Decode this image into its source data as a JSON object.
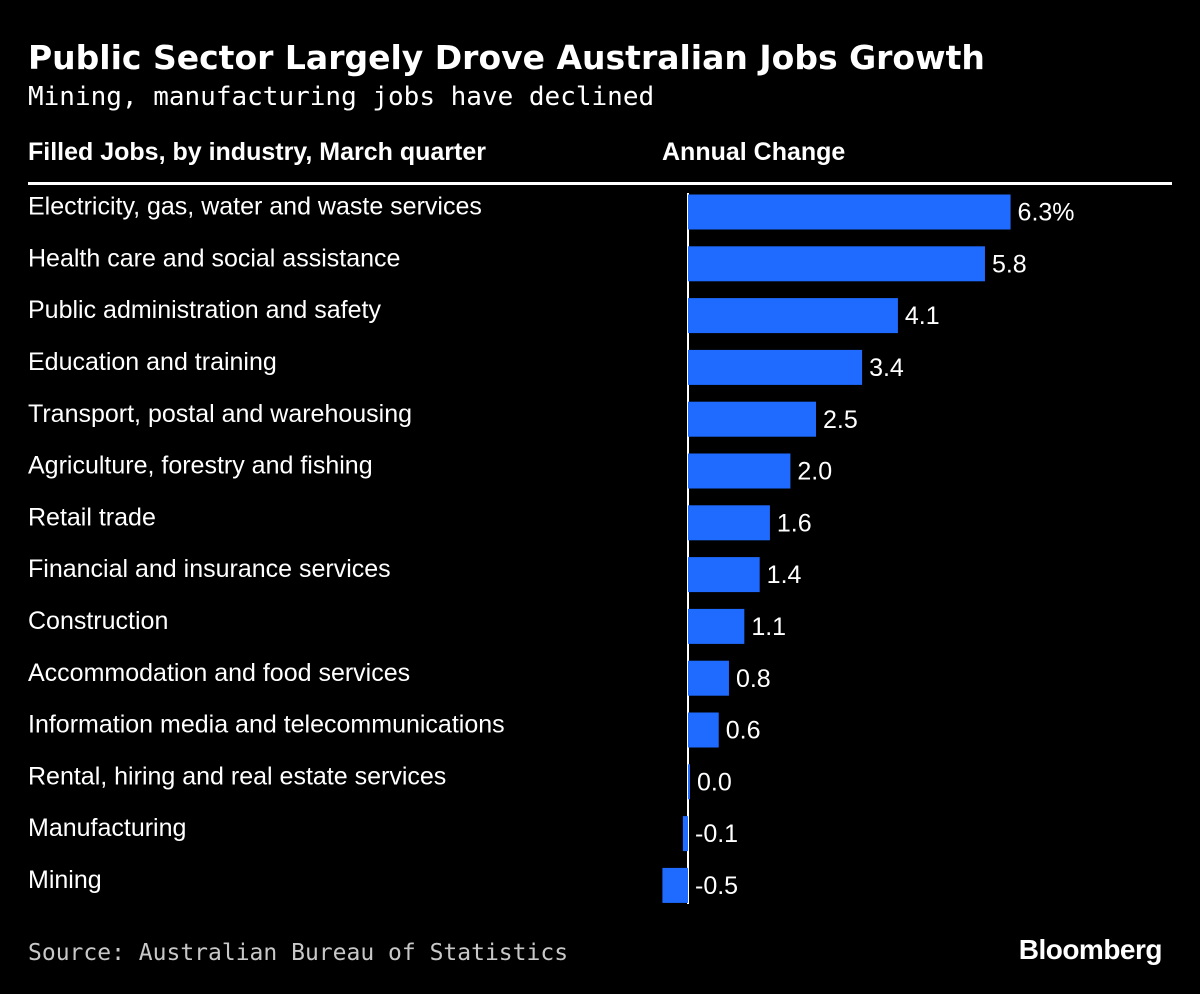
{
  "header": {
    "title": "Public Sector Largely Drove Australian Jobs Growth",
    "subtitle": "Mining, manufacturing jobs have declined",
    "left_column": "Filled Jobs, by industry, March quarter",
    "right_column": "Annual Change"
  },
  "footer": {
    "source": "Source: Australian Bureau of Statistics",
    "brand": "Bloomberg"
  },
  "colors": {
    "background": "#000000",
    "bar": "#1f6bff",
    "text": "#ffffff",
    "axis": "#ffffff"
  },
  "chart_data": {
    "type": "bar",
    "orientation": "horizontal",
    "title": "Public Sector Largely Drove Australian Jobs Growth",
    "subtitle": "Mining, manufacturing jobs have declined",
    "categories": [
      "Electricity, gas, water and waste services",
      "Health care and social assistance",
      "Public administration and safety",
      "Education and training",
      "Transport, postal and warehousing",
      "Agriculture, forestry and fishing",
      "Retail trade",
      "Financial and insurance services",
      "Construction",
      "Accommodation and food services",
      "Information media and telecommunications",
      "Rental, hiring and real estate services",
      "Manufacturing",
      "Mining"
    ],
    "values": [
      6.3,
      5.8,
      4.1,
      3.4,
      2.5,
      2.0,
      1.6,
      1.4,
      1.1,
      0.8,
      0.6,
      0.0,
      -0.1,
      -0.5
    ],
    "value_labels": [
      "6.3%",
      "5.8",
      "4.1",
      "3.4",
      "2.5",
      "2.0",
      "1.6",
      "1.4",
      "1.1",
      "0.8",
      "0.6",
      "0.0",
      "-0.1",
      "-0.5"
    ],
    "unit": "%",
    "xlabel": "Annual Change",
    "ylabel": "Filled Jobs, by industry, March quarter",
    "xlim": [
      -0.5,
      6.3
    ],
    "grid": false,
    "legend": "none"
  }
}
